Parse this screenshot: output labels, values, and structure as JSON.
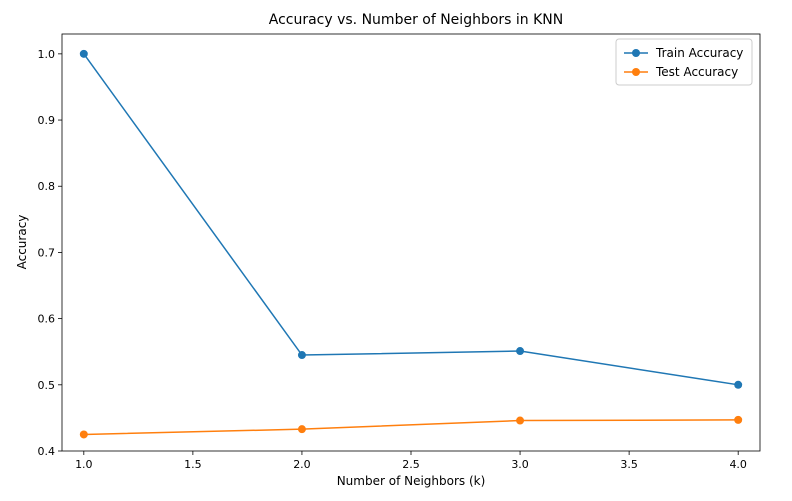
{
  "chart_data": {
    "type": "line",
    "title": "Accuracy vs. Number of Neighbors in KNN",
    "xlabel": "Number of Neighbors (k)",
    "ylabel": "Accuracy",
    "x": [
      1.0,
      2.0,
      3.0,
      4.0
    ],
    "xlim": [
      0.9,
      4.1
    ],
    "ylim": [
      0.4,
      1.03
    ],
    "xticks": [
      1.0,
      1.5,
      2.0,
      2.5,
      3.0,
      3.5,
      4.0
    ],
    "xtick_labels": [
      "1.0",
      "1.5",
      "2.0",
      "2.5",
      "3.0",
      "3.5",
      "4.0"
    ],
    "yticks": [
      0.4,
      0.5,
      0.6,
      0.7,
      0.8,
      0.9,
      1.0
    ],
    "ytick_labels": [
      "0.4",
      "0.5",
      "0.6",
      "0.7",
      "0.8",
      "0.9",
      "1.0"
    ],
    "grid": false,
    "legend_position": "top-right",
    "markers": "circle",
    "series": [
      {
        "name": "Train Accuracy",
        "color": "#1f77b4",
        "values": [
          1.0,
          0.545,
          0.551,
          0.5
        ]
      },
      {
        "name": "Test Accuracy",
        "color": "#ff7f0e",
        "values": [
          0.425,
          0.433,
          0.446,
          0.447
        ]
      }
    ]
  }
}
